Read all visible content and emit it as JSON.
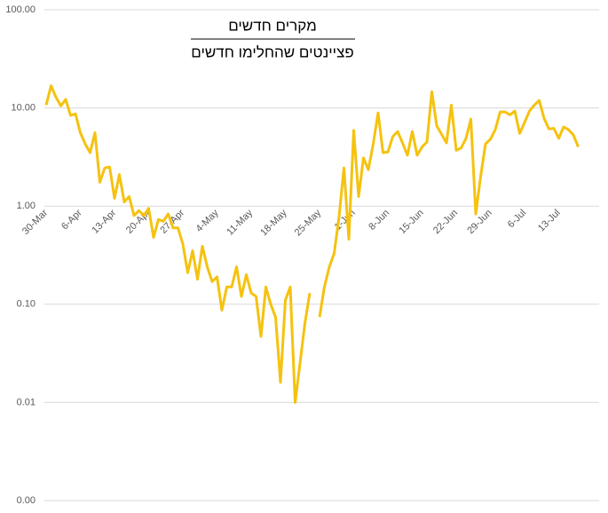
{
  "chart_data": {
    "type": "line",
    "title": "מקרים חדשים",
    "subtitle": "פציינטים שהחלימו חדשים",
    "categories": [
      "30-Mar",
      null,
      null,
      null,
      null,
      null,
      null,
      "6-Apr",
      null,
      null,
      null,
      null,
      null,
      null,
      "13-Apr",
      null,
      null,
      null,
      null,
      null,
      null,
      "20-Apr",
      null,
      null,
      null,
      null,
      null,
      null,
      "27-Apr",
      null,
      null,
      null,
      null,
      null,
      null,
      "4-May",
      null,
      null,
      null,
      null,
      null,
      null,
      "11-May",
      null,
      null,
      null,
      null,
      null,
      null,
      "18-May",
      null,
      null,
      null,
      null,
      null,
      null,
      "25-May",
      null,
      null,
      null,
      null,
      null,
      null,
      "1-Jun",
      null,
      null,
      null,
      null,
      null,
      null,
      "8-Jun",
      null,
      null,
      null,
      null,
      null,
      null,
      "15-Jun",
      null,
      null,
      null,
      null,
      null,
      null,
      "22-Jun",
      null,
      null,
      null,
      null,
      null,
      null,
      "29-Jun",
      null,
      null,
      null,
      null,
      null,
      null,
      "6-Jul",
      null,
      null,
      null,
      null,
      null,
      null,
      "13-Jul",
      null,
      null,
      null,
      null
    ],
    "values": [
      10.7,
      16.8,
      12.9,
      10.5,
      12.2,
      8.4,
      8.7,
      5.6,
      4.3,
      3.5,
      5.6,
      1.75,
      2.45,
      2.5,
      1.2,
      2.1,
      1.1,
      1.25,
      0.8,
      0.9,
      0.8,
      0.95,
      0.48,
      0.73,
      0.7,
      0.83,
      0.6,
      0.6,
      0.41,
      0.21,
      0.35,
      0.18,
      0.39,
      0.24,
      0.17,
      0.19,
      0.087,
      0.15,
      0.15,
      0.24,
      0.12,
      0.2,
      0.13,
      0.12,
      0.047,
      0.15,
      0.1,
      0.074,
      0.016,
      0.11,
      0.15,
      0.01,
      0.025,
      0.064,
      0.13,
      null,
      0.074,
      0.15,
      0.24,
      0.33,
      0.78,
      2.45,
      0.46,
      5.9,
      1.25,
      3.1,
      2.35,
      4.3,
      8.9,
      3.5,
      3.55,
      5.1,
      5.75,
      4.4,
      3.3,
      5.75,
      3.3,
      4.0,
      4.5,
      14.6,
      6.6,
      5.4,
      4.4,
      10.7,
      3.7,
      3.9,
      4.9,
      7.7,
      0.83,
      2.0,
      4.3,
      4.8,
      6.0,
      9.1,
      9.1,
      8.5,
      9.3,
      5.5,
      7.1,
      9.3,
      10.7,
      11.9,
      7.8,
      6.1,
      6.2,
      4.9,
      6.4,
      6.0,
      5.3,
      4.0
    ],
    "color": "#f5c20f",
    "log_scale": true,
    "ylim": [
      0.001,
      100
    ],
    "yticks": [
      {
        "value": 0.001,
        "label": "0.00"
      },
      {
        "value": 0.01,
        "label": "0.01"
      },
      {
        "value": 0.1,
        "label": "0.10"
      },
      {
        "value": 1,
        "label": "1.00"
      },
      {
        "value": 10,
        "label": "10.00"
      },
      {
        "value": 100,
        "label": "100.00"
      }
    ],
    "grid": true
  }
}
